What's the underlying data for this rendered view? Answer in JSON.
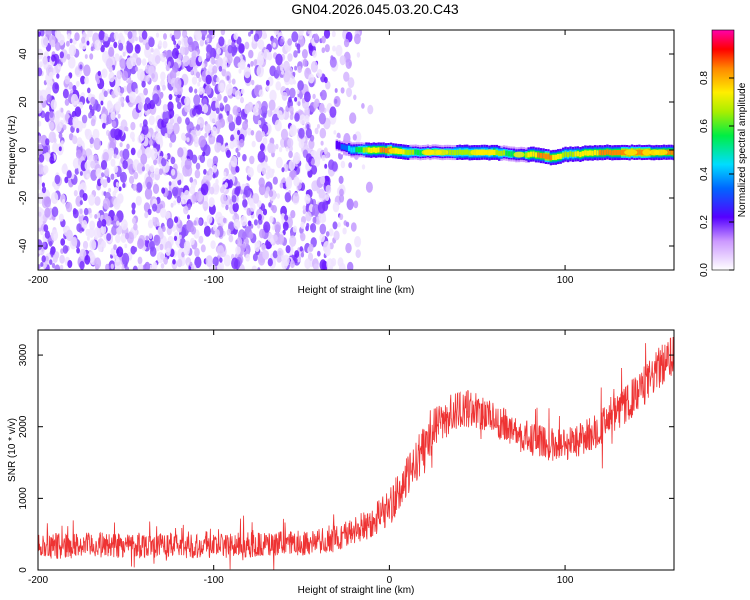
{
  "title": "GN04.2026.045.03.20.C43",
  "chart_data": [
    {
      "type": "heatmap",
      "xlabel": "Height of straight line (km)",
      "ylabel": "Frequency (Hz)",
      "xlim": [
        -200,
        162
      ],
      "ylim": [
        -50,
        50
      ],
      "x_ticks": [
        -200,
        -100,
        0,
        100
      ],
      "y_ticks": [
        -40,
        -20,
        0,
        20,
        40
      ],
      "noise_region_x": [
        -200,
        -20
      ],
      "signal_line": {
        "x_start": -30,
        "x_end": 162,
        "frequency": -1,
        "x": [
          -30,
          -20,
          -10,
          0,
          10,
          20,
          40,
          60,
          75,
          80,
          85,
          90,
          95,
          100,
          120,
          140,
          162
        ],
        "freq": [
          2,
          0,
          0,
          0,
          -1,
          -1,
          -1,
          -1,
          -2,
          -2,
          -2,
          -3,
          -3,
          -2,
          -1,
          -1,
          -1
        ],
        "amplitude": [
          0.3,
          0.55,
          0.8,
          0.9,
          0.7,
          0.6,
          0.7,
          0.75,
          0.5,
          0.8,
          0.85,
          0.9,
          0.8,
          0.7,
          0.85,
          0.9,
          0.85
        ]
      },
      "colorbar": {
        "label": "Normalized spectral amplitude",
        "ticks": [
          "0.0",
          "0.2",
          "0.4",
          "0.6",
          "0.8"
        ],
        "range": [
          0,
          1
        ]
      }
    },
    {
      "type": "line",
      "xlabel": "Height of straight line (km)",
      "ylabel": "SNR (10 * v/v)",
      "xlim": [
        -200,
        162
      ],
      "ylim": [
        0,
        3350
      ],
      "x_ticks": [
        -200,
        -100,
        0,
        100
      ],
      "y_ticks": [
        0,
        1000,
        2000,
        3000
      ],
      "series": [
        {
          "name": "SNR",
          "color": "#ee3333",
          "x": [
            -200,
            -180,
            -160,
            -140,
            -120,
            -100,
            -80,
            -60,
            -40,
            -30,
            -20,
            -10,
            0,
            5,
            10,
            15,
            20,
            25,
            30,
            35,
            40,
            45,
            50,
            55,
            60,
            65,
            70,
            75,
            80,
            85,
            90,
            95,
            100,
            105,
            110,
            115,
            120,
            125,
            130,
            135,
            140,
            145,
            150,
            155,
            162
          ],
          "values": [
            330,
            340,
            350,
            350,
            340,
            340,
            350,
            360,
            400,
            450,
            540,
            680,
            880,
            1050,
            1280,
            1500,
            1750,
            1950,
            2080,
            2180,
            2230,
            2250,
            2230,
            2180,
            2110,
            2030,
            1950,
            1880,
            1830,
            1790,
            1760,
            1750,
            1760,
            1790,
            1840,
            1910,
            1990,
            2080,
            2190,
            2310,
            2440,
            2570,
            2710,
            2850,
            3020
          ],
          "noise_amplitude": [
            170,
            170,
            170,
            170,
            170,
            170,
            170,
            170,
            170,
            180,
            190,
            220,
            250,
            270,
            280,
            290,
            290,
            290,
            280,
            270,
            260,
            250,
            240,
            240,
            230,
            230,
            230,
            230,
            230,
            230,
            230,
            230,
            230,
            230,
            230,
            240,
            240,
            250,
            250,
            260,
            260,
            270,
            270,
            280,
            290
          ]
        }
      ]
    }
  ]
}
